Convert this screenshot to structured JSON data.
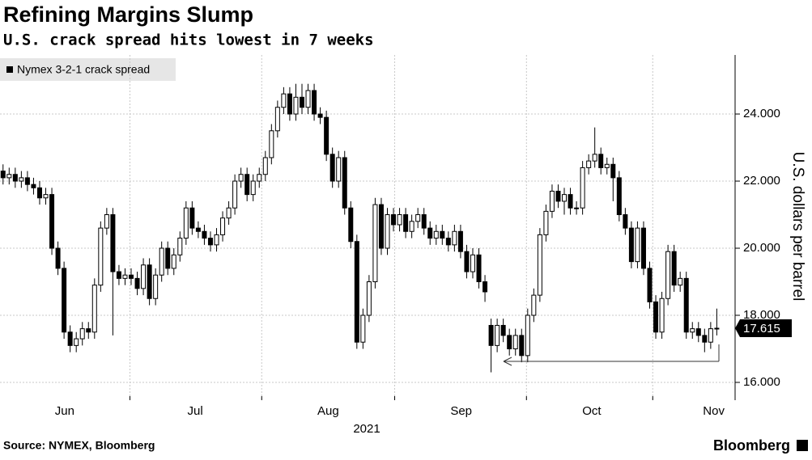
{
  "chart_data": {
    "type": "candlestick",
    "title": "Refining Margins Slump",
    "subtitle": "U.S. crack spread hits lowest in 7 weeks",
    "series_name": "Nymex 3-2-1 crack spread",
    "y_label": "U.S. dollars per barrel",
    "x_sublabel": "2021",
    "source": "Source: NYMEX, Bloomberg",
    "brand": "Bloomberg",
    "up_color": "#ffffff",
    "down_color": "#000000",
    "grid": true,
    "ylim": [
      15.47,
      25.76
    ],
    "yticks": [
      {
        "value": 16,
        "label": "16.000"
      },
      {
        "value": 18,
        "label": "18.000"
      },
      {
        "value": 20,
        "label": "20.000"
      },
      {
        "value": 22,
        "label": "22.000"
      },
      {
        "value": 24,
        "label": "24.000"
      }
    ],
    "xlim": [
      -0.5,
      120
    ],
    "xticks": [
      {
        "value": 10.1,
        "label": "Jun"
      },
      {
        "value": 31.5,
        "label": "Jul"
      },
      {
        "value": 53.3,
        "label": "Aug"
      },
      {
        "value": 75.1,
        "label": "Sep"
      },
      {
        "value": 96.5,
        "label": "Oct"
      },
      {
        "value": 116.5,
        "label": "Nov"
      }
    ],
    "open": [
      22.3,
      22.1,
      22.2,
      22.0,
      22.1,
      21.9,
      21.8,
      21.5,
      21.6,
      20.0,
      19.4,
      17.5,
      17.1,
      17.3,
      17.6,
      17.5,
      18.9,
      20.6,
      21.0,
      19.3,
      19.1,
      19.2,
      19.1,
      18.8,
      19.5,
      18.5,
      19.2,
      20.0,
      19.4,
      19.8,
      20.3,
      21.2,
      20.6,
      20.5,
      20.3,
      20.1,
      20.4,
      20.9,
      21.2,
      22.0,
      22.2,
      21.6,
      22.0,
      22.2,
      22.7,
      23.5,
      24.2,
      24.6,
      24.0,
      24.5,
      24.2,
      24.7,
      24.0,
      23.9,
      22.8,
      22.0,
      22.7,
      21.2,
      20.2,
      17.2,
      18.0,
      19.0,
      21.3,
      20.0,
      21.0,
      20.7,
      21.0,
      20.5,
      20.8,
      21.0,
      20.6,
      20.3,
      20.5,
      20.3,
      20.1,
      20.5,
      19.9,
      19.3,
      19.8,
      19.0,
      17.7,
      17.1,
      17.7,
      17.4,
      17.0,
      17.4,
      16.8,
      18.0,
      18.6,
      20.4,
      21.1,
      21.7,
      21.4,
      21.6,
      21.2,
      21.2,
      22.4,
      22.6,
      22.8,
      22.4,
      22.5,
      22.1,
      21.0,
      20.6,
      19.6,
      20.6,
      19.4,
      18.4,
      17.5,
      18.5,
      19.9,
      18.9,
      19.1,
      17.5,
      17.6,
      17.4,
      17.2,
      17.6
    ],
    "high": [
      22.5,
      22.4,
      22.4,
      22.3,
      22.3,
      22.1,
      22.0,
      21.8,
      21.8,
      20.2,
      19.6,
      17.7,
      17.5,
      17.8,
      17.8,
      19.1,
      20.8,
      21.2,
      21.2,
      19.5,
      19.4,
      19.4,
      19.3,
      19.7,
      19.7,
      19.4,
      20.2,
      20.2,
      20.0,
      20.5,
      21.4,
      21.4,
      20.8,
      20.7,
      20.5,
      20.6,
      21.1,
      21.4,
      22.2,
      22.4,
      22.4,
      22.2,
      22.4,
      22.9,
      23.7,
      24.4,
      24.8,
      24.8,
      24.9,
      24.9,
      24.9,
      24.9,
      24.2,
      24.1,
      23.0,
      22.9,
      22.9,
      21.4,
      20.4,
      18.2,
      19.2,
      21.5,
      21.5,
      21.2,
      21.2,
      21.2,
      21.2,
      21.0,
      21.2,
      21.2,
      20.8,
      20.7,
      20.7,
      20.5,
      20.7,
      20.7,
      20.1,
      20.0,
      20.0,
      19.2,
      17.9,
      17.9,
      17.9,
      17.6,
      17.6,
      17.6,
      18.2,
      18.8,
      20.6,
      21.3,
      21.9,
      21.9,
      21.8,
      21.8,
      21.4,
      22.6,
      22.8,
      23.6,
      23.0,
      22.7,
      22.7,
      22.3,
      21.2,
      20.8,
      20.8,
      20.8,
      19.6,
      18.6,
      18.7,
      20.1,
      20.1,
      19.3,
      19.3,
      17.8,
      17.8,
      17.6,
      17.8,
      18.2
    ],
    "low": [
      21.9,
      21.9,
      21.8,
      21.8,
      21.7,
      21.6,
      21.3,
      21.3,
      19.8,
      19.2,
      17.3,
      16.9,
      16.9,
      17.1,
      17.3,
      17.3,
      18.7,
      20.4,
      17.4,
      18.9,
      18.9,
      18.9,
      18.6,
      18.6,
      18.3,
      18.3,
      19.0,
      19.2,
      19.2,
      19.6,
      20.1,
      20.4,
      20.3,
      20.1,
      19.9,
      19.9,
      20.2,
      20.7,
      21.0,
      21.8,
      21.4,
      21.4,
      21.8,
      22.0,
      22.5,
      23.3,
      24.0,
      23.8,
      23.8,
      24.0,
      24.0,
      23.8,
      23.7,
      22.6,
      21.8,
      21.8,
      21.0,
      20.0,
      17.0,
      17.0,
      17.8,
      18.8,
      19.8,
      19.8,
      20.5,
      20.5,
      20.3,
      20.3,
      20.6,
      20.4,
      20.1,
      20.1,
      20.1,
      19.9,
      19.9,
      19.7,
      19.1,
      19.1,
      18.8,
      18.4,
      16.3,
      16.9,
      17.2,
      16.8,
      16.8,
      16.6,
      16.6,
      17.8,
      18.4,
      20.2,
      20.9,
      21.2,
      21.0,
      21.0,
      21.0,
      21.0,
      22.2,
      22.4,
      22.2,
      22.2,
      21.4,
      20.8,
      20.4,
      19.4,
      19.4,
      19.2,
      18.2,
      17.3,
      17.3,
      18.3,
      18.7,
      18.7,
      17.3,
      17.3,
      17.2,
      16.9,
      17.0,
      17.4
    ],
    "close": [
      22.1,
      22.2,
      22.0,
      22.1,
      21.9,
      21.8,
      21.5,
      21.6,
      20.0,
      19.4,
      17.5,
      17.1,
      17.3,
      17.6,
      17.5,
      18.9,
      20.6,
      21.0,
      19.3,
      19.1,
      19.2,
      19.1,
      18.8,
      19.5,
      18.5,
      19.2,
      20.0,
      19.4,
      19.8,
      20.3,
      21.2,
      20.6,
      20.5,
      20.3,
      20.1,
      20.4,
      20.9,
      21.2,
      22.0,
      22.2,
      21.6,
      22.0,
      22.2,
      22.7,
      23.5,
      24.2,
      24.6,
      24.0,
      24.5,
      24.2,
      24.7,
      24.0,
      23.9,
      22.8,
      22.0,
      22.7,
      21.2,
      20.2,
      17.2,
      18.0,
      19.0,
      21.3,
      20.0,
      21.0,
      20.7,
      21.0,
      20.5,
      20.8,
      21.0,
      20.6,
      20.3,
      20.5,
      20.3,
      20.1,
      20.5,
      19.9,
      19.3,
      19.8,
      19.0,
      18.7,
      17.1,
      17.7,
      17.4,
      17.0,
      17.4,
      16.8,
      18.0,
      18.6,
      20.4,
      21.1,
      21.7,
      21.4,
      21.6,
      21.2,
      21.2,
      22.4,
      22.6,
      22.8,
      22.4,
      22.5,
      22.1,
      21.0,
      20.6,
      19.6,
      20.6,
      19.4,
      18.4,
      17.5,
      18.5,
      19.9,
      18.9,
      19.1,
      17.5,
      17.6,
      17.4,
      17.2,
      17.6,
      17.615
    ]
  }
}
